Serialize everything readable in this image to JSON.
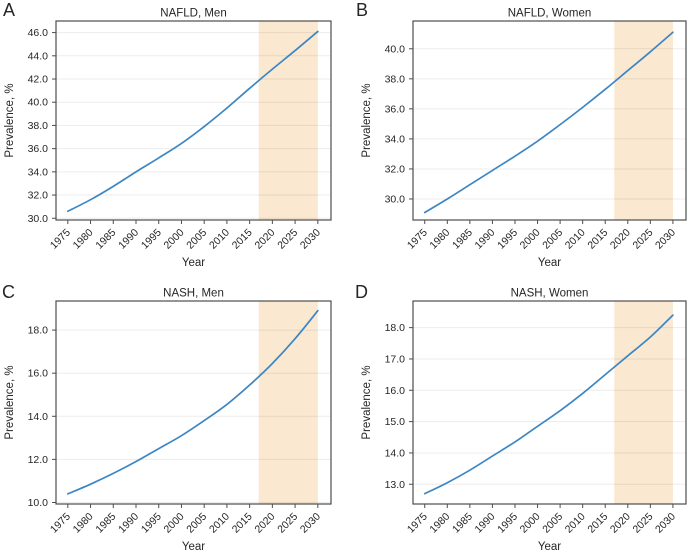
{
  "figure": {
    "background": "#ffffff",
    "line_color": "#3c86c4",
    "shade_color": "#fae8d0",
    "grid_color": "#000000",
    "grid_opacity": 0.075,
    "border_color": "#4d4d4d",
    "tick_color": "#4d4d4d",
    "text_color": "#262626"
  },
  "chart_data": [
    {
      "type": "line",
      "panel_label": "A",
      "title": "NAFLD, Men",
      "xlabel": "Year",
      "ylabel": "Prevalence, %",
      "x": [
        1975,
        1980,
        1985,
        1990,
        1995,
        2000,
        2005,
        2010,
        2015,
        2020,
        2025,
        2030
      ],
      "y": [
        30.6,
        31.6,
        32.75,
        34.0,
        35.2,
        36.45,
        37.9,
        39.5,
        41.2,
        42.85,
        44.45,
        46.1
      ],
      "xticks": [
        1975,
        1980,
        1985,
        1990,
        1995,
        2000,
        2005,
        2010,
        2015,
        2020,
        2025,
        2030
      ],
      "yticks": [
        30,
        32,
        34,
        36,
        38,
        40,
        42,
        44,
        46
      ],
      "xlim": [
        1972.4,
        2032.9
      ],
      "ylim": [
        29.85,
        47.0
      ],
      "shaded_region": {
        "start": 2017,
        "end": 2030
      },
      "grid": "horizontal",
      "legend": "none"
    },
    {
      "type": "line",
      "panel_label": "B",
      "title": "NAFLD, Women",
      "xlabel": "Year",
      "ylabel": "Prevalence, %",
      "x": [
        1975,
        1980,
        1985,
        1990,
        1995,
        2000,
        2005,
        2010,
        2015,
        2020,
        2025,
        2030
      ],
      "y": [
        29.1,
        30.0,
        30.95,
        31.9,
        32.85,
        33.85,
        34.95,
        36.1,
        37.3,
        38.55,
        39.8,
        41.1
      ],
      "xticks": [
        1975,
        1980,
        1985,
        1990,
        1995,
        2000,
        2005,
        2010,
        2015,
        2020,
        2025,
        2030
      ],
      "yticks": [
        30,
        32,
        34,
        36,
        38,
        40
      ],
      "xlim": [
        1972.4,
        2032.9
      ],
      "ylim": [
        28.6,
        41.85
      ],
      "shaded_region": {
        "start": 2017,
        "end": 2030
      },
      "grid": "horizontal",
      "legend": "none"
    },
    {
      "type": "line",
      "panel_label": "C",
      "title": "NASH, Men",
      "xlabel": "Year",
      "ylabel": "Prevalence, %",
      "x": [
        1975,
        1980,
        1985,
        1990,
        1995,
        2000,
        2005,
        2010,
        2015,
        2020,
        2025,
        2030
      ],
      "y": [
        10.4,
        10.85,
        11.35,
        11.9,
        12.5,
        13.1,
        13.8,
        14.55,
        15.45,
        16.45,
        17.6,
        18.9
      ],
      "xticks": [
        1975,
        1980,
        1985,
        1990,
        1995,
        2000,
        2005,
        2010,
        2015,
        2020,
        2025,
        2030
      ],
      "yticks": [
        10,
        12,
        14,
        16,
        18
      ],
      "xlim": [
        1972.4,
        2032.9
      ],
      "ylim": [
        9.93,
        19.35
      ],
      "shaded_region": {
        "start": 2017,
        "end": 2030
      },
      "grid": "horizontal",
      "legend": "none"
    },
    {
      "type": "line",
      "panel_label": "D",
      "title": "NASH, Women",
      "xlabel": "Year",
      "ylabel": "Prevalence, %",
      "x": [
        1975,
        1980,
        1985,
        1990,
        1995,
        2000,
        2005,
        2010,
        2015,
        2020,
        2025,
        2030
      ],
      "y": [
        12.7,
        13.05,
        13.45,
        13.9,
        14.35,
        14.85,
        15.35,
        15.9,
        16.5,
        17.1,
        17.7,
        18.4
      ],
      "xticks": [
        1975,
        1980,
        1985,
        1990,
        1995,
        2000,
        2005,
        2010,
        2015,
        2020,
        2025,
        2030
      ],
      "yticks": [
        13,
        14,
        15,
        16,
        17,
        18
      ],
      "xlim": [
        1972.4,
        2032.9
      ],
      "ylim": [
        12.37,
        18.85
      ],
      "shaded_region": {
        "start": 2017,
        "end": 2030
      },
      "grid": "horizontal",
      "legend": "none"
    }
  ]
}
